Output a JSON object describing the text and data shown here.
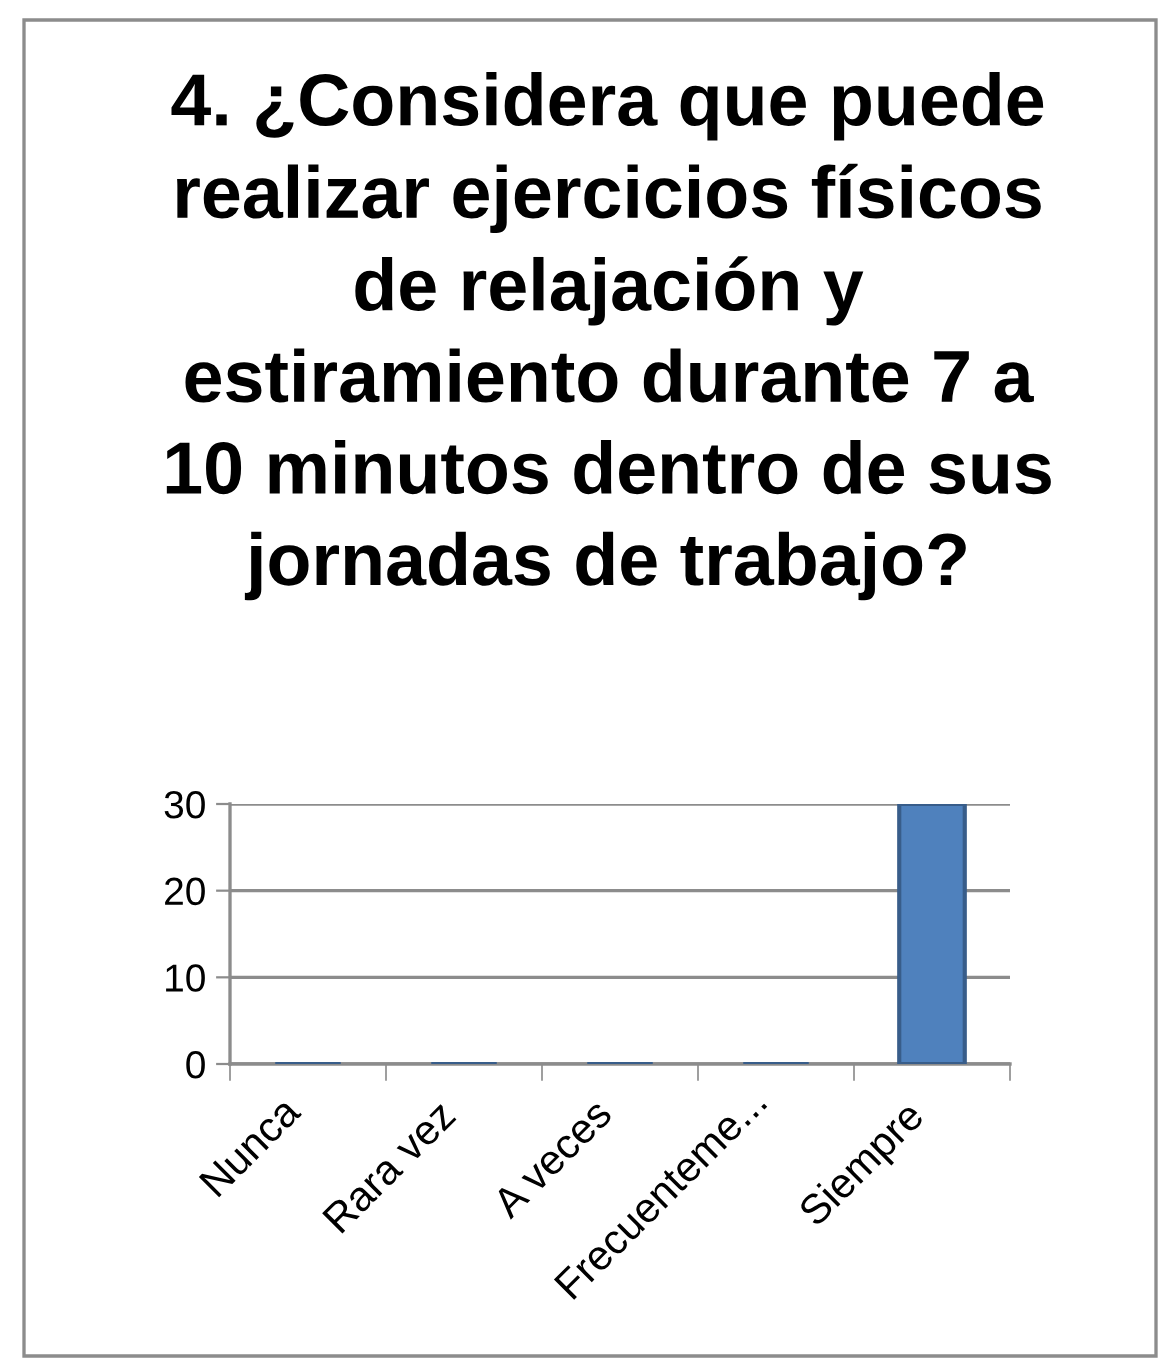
{
  "chart_data": {
    "type": "bar",
    "title": "4. ¿Considera que puede\nrealizar ejercicios físicos\nde relajación y\nestiramiento durante 7 a\n10 minutos dentro de sus\njornadas de trabajo?",
    "categories": [
      "Nunca",
      "Rara vez",
      "A veces",
      "Frecuenteme...",
      "Siempre"
    ],
    "values": [
      0,
      0,
      0,
      0,
      30
    ],
    "color": "#4f81bd",
    "ylim": [
      0,
      30
    ],
    "yticks": [
      0,
      10,
      20,
      30
    ],
    "grid": "y"
  }
}
